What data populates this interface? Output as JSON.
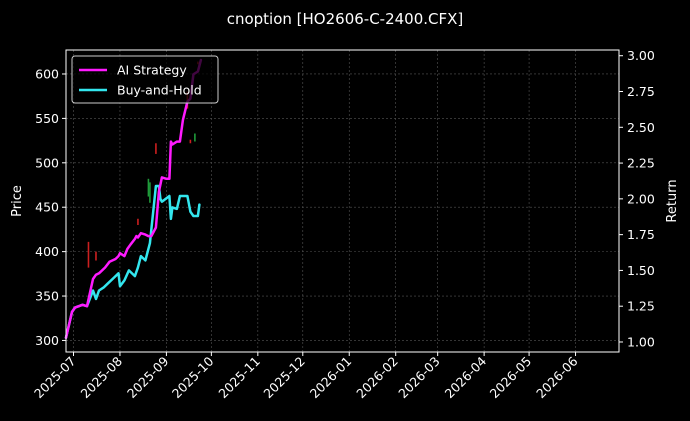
{
  "chart_data": {
    "type": "line",
    "title": "cnoption [HO2606-C-2400.CFX]",
    "xlabel": "",
    "ylabel_left": "Price",
    "ylabel_right": "Return",
    "x_ticks": [
      "2025-07",
      "2025-08",
      "2025-09",
      "2025-10",
      "2025-11",
      "2025-12",
      "2026-01",
      "2026-02",
      "2026-03",
      "2026-04",
      "2026-05",
      "2026-06"
    ],
    "xlim": [
      "2025-06-26",
      "2026-06-30"
    ],
    "ylim_left": [
      287,
      627
    ],
    "ylim_right": [
      0.93,
      3.04
    ],
    "y_ticks_left": [
      300,
      350,
      400,
      450,
      500,
      550,
      600
    ],
    "y_ticks_right": [
      1.0,
      1.25,
      1.5,
      1.75,
      2.0,
      2.25,
      2.5,
      2.75,
      3.0
    ],
    "grid": true,
    "legend_position": "top-left",
    "colors": {
      "background": "#000000",
      "ai_strategy": "#ff1aff",
      "buy_and_hold": "#33e6ee",
      "candle_up": "#1f9b3a",
      "candle_down": "#cc1f1f",
      "grid": "#555555"
    },
    "series": [
      {
        "name": "AI Strategy",
        "axis": "right",
        "x": [
          "2025-06-26",
          "2025-06-30",
          "2025-07-02",
          "2025-07-07",
          "2025-07-10",
          "2025-07-14",
          "2025-07-16",
          "2025-07-18",
          "2025-07-22",
          "2025-07-25",
          "2025-07-29",
          "2025-07-31",
          "2025-08-01",
          "2025-08-04",
          "2025-08-06",
          "2025-08-08",
          "2025-08-11",
          "2025-08-12",
          "2025-08-13",
          "2025-08-15",
          "2025-08-18",
          "2025-08-20",
          "2025-08-22",
          "2025-08-25",
          "2025-08-27",
          "2025-08-29",
          "2025-09-01",
          "2025-09-03",
          "2025-09-04",
          "2025-09-05",
          "2025-09-08",
          "2025-09-10",
          "2025-09-12",
          "2025-09-15",
          "2025-09-17",
          "2025-09-19",
          "2025-09-22",
          "2025-09-24"
        ],
        "values": [
          1.03,
          1.21,
          1.24,
          1.26,
          1.25,
          1.44,
          1.47,
          1.48,
          1.52,
          1.56,
          1.58,
          1.6,
          1.62,
          1.6,
          1.65,
          1.68,
          1.72,
          1.74,
          1.73,
          1.76,
          1.75,
          1.74,
          1.74,
          1.8,
          2.05,
          2.15,
          2.14,
          2.14,
          2.4,
          2.38,
          2.4,
          2.4,
          2.55,
          2.68,
          2.7,
          2.87,
          2.89,
          2.97
        ]
      },
      {
        "name": "Buy-and-Hold",
        "axis": "right",
        "x": [
          "2025-06-26",
          "2025-06-30",
          "2025-07-02",
          "2025-07-07",
          "2025-07-10",
          "2025-07-14",
          "2025-07-16",
          "2025-07-18",
          "2025-07-21",
          "2025-07-24",
          "2025-07-28",
          "2025-07-31",
          "2025-08-01",
          "2025-08-04",
          "2025-08-07",
          "2025-08-11",
          "2025-08-13",
          "2025-08-15",
          "2025-08-18",
          "2025-08-21",
          "2025-08-22",
          "2025-08-25",
          "2025-08-27",
          "2025-08-28",
          "2025-08-29",
          "2025-09-03",
          "2025-09-04",
          "2025-09-05",
          "2025-09-08",
          "2025-09-10",
          "2025-09-12",
          "2025-09-15",
          "2025-09-17",
          "2025-09-19",
          "2025-09-22",
          "2025-09-23"
        ],
        "values": [
          1.03,
          1.21,
          1.24,
          1.26,
          1.25,
          1.36,
          1.3,
          1.36,
          1.38,
          1.41,
          1.45,
          1.48,
          1.39,
          1.43,
          1.5,
          1.46,
          1.52,
          1.6,
          1.57,
          1.69,
          1.79,
          2.09,
          2.09,
          2.0,
          1.98,
          2.02,
          1.86,
          1.94,
          1.93,
          2.02,
          2.02,
          2.02,
          1.91,
          1.88,
          1.88,
          1.96
        ]
      }
    ],
    "candles": [
      {
        "x": "2025-07-11",
        "low": 382,
        "high": 411,
        "dir": "down"
      },
      {
        "x": "2025-07-16",
        "low": 390,
        "high": 400,
        "dir": "down"
      },
      {
        "x": "2025-08-13",
        "low": 430,
        "high": 437,
        "dir": "down"
      },
      {
        "x": "2025-08-20",
        "low": 462,
        "high": 482,
        "dir": "up"
      },
      {
        "x": "2025-08-21",
        "low": 455,
        "high": 478,
        "dir": "up"
      },
      {
        "x": "2025-08-25",
        "low": 510,
        "high": 522,
        "dir": "down"
      },
      {
        "x": "2025-09-15",
        "low": 561,
        "high": 580,
        "dir": "down"
      },
      {
        "x": "2025-09-17",
        "low": 522,
        "high": 526,
        "dir": "down"
      },
      {
        "x": "2025-09-20",
        "low": 524,
        "high": 533,
        "dir": "up"
      },
      {
        "x": "2025-09-22",
        "low": 611,
        "high": 614,
        "dir": "down"
      }
    ]
  }
}
